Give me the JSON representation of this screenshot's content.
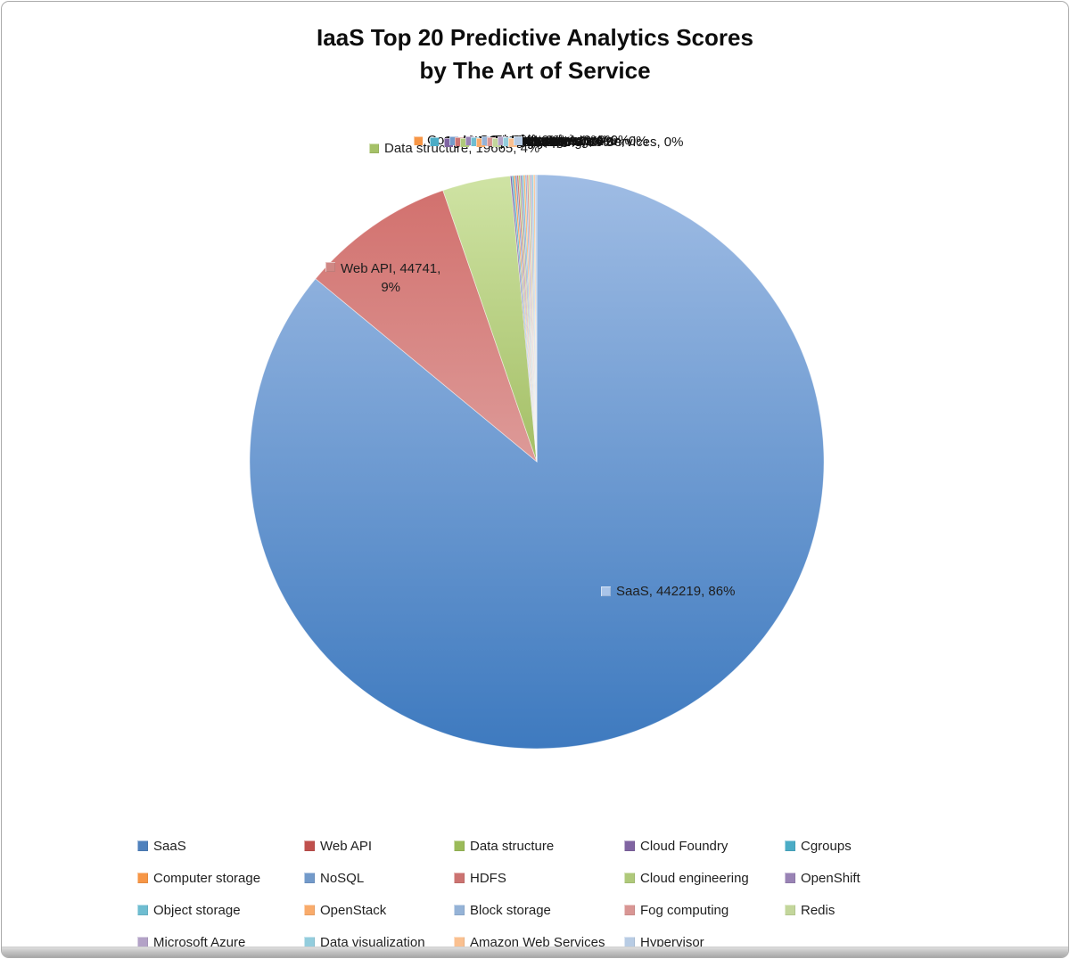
{
  "title": {
    "line1": "IaaS Top 20 Predictive Analytics Scores",
    "line2": "by The Art of Service"
  },
  "chart_data": {
    "type": "pie",
    "title": "IaaS Top 20 Predictive Analytics Scores by The Art of Service",
    "legend_position": "bottom",
    "label_style": "name, value, percent callouts; tiny-slice labels overlap illegibly above pie",
    "slices": [
      {
        "name": "SaaS",
        "value": 442219,
        "pct_label": "86%",
        "data_label": "SaaS, 442219, 86%",
        "color": "#4F81BD",
        "gradient": [
          "#9FBCE4",
          "#3E7ABF"
        ],
        "key_color": "#A9C4E9"
      },
      {
        "name": "Web API",
        "value": 44741,
        "pct_label": "9%",
        "data_label_line1": "Web API, 44741,",
        "data_label_line2": "9%",
        "color": "#C0504D",
        "gradient": [
          "#D2716E",
          "#DD9A98"
        ],
        "key_color": "#D08784"
      },
      {
        "name": "Data structure",
        "value": 19665,
        "pct_label": "4%",
        "data_label": "Data structure, 19665, 4%",
        "color": "#9BBB59",
        "gradient": [
          "#CFE3A4",
          "#A4BF66"
        ],
        "key_color": "#A5C167"
      },
      {
        "name": "Cloud Foundry",
        "value": null,
        "pct_label": "0%",
        "color": "#8064A2"
      },
      {
        "name": "Cgroups",
        "value": null,
        "pct_label": "0%",
        "color": "#4BACC6"
      },
      {
        "name": "Computer storage",
        "value": null,
        "pct_label": "0%",
        "color": "#F79646"
      },
      {
        "name": "NoSQL",
        "value": null,
        "pct_label": "0%",
        "color": "#729ACA"
      },
      {
        "name": "HDFS",
        "value": null,
        "pct_label": "0%",
        "color": "#CC7371"
      },
      {
        "name": "Cloud engineering",
        "value": null,
        "pct_label": "0%",
        "color": "#AFC97A"
      },
      {
        "name": "OpenShift",
        "value": null,
        "pct_label": "0%",
        "color": "#9983B5"
      },
      {
        "name": "Object storage",
        "value": null,
        "pct_label": "0%",
        "color": "#6FBDD1"
      },
      {
        "name": "OpenStack",
        "value": null,
        "pct_label": "0%",
        "color": "#F9AB6B"
      },
      {
        "name": "Block storage",
        "value": null,
        "pct_label": "0%",
        "color": "#95B3D7"
      },
      {
        "name": "Fog computing",
        "value": null,
        "pct_label": "0%",
        "color": "#D99694"
      },
      {
        "name": "Redis",
        "value": null,
        "pct_label": "0%",
        "color": "#C3D69B"
      },
      {
        "name": "Microsoft Azure",
        "value": null,
        "pct_label": "0%",
        "color": "#B3A2C7"
      },
      {
        "name": "Data visualization",
        "value": null,
        "pct_label": "0%",
        "color": "#93CDDD"
      },
      {
        "name": "Amazon Web Services",
        "value": null,
        "pct_label": "0%",
        "color": "#FAC090"
      },
      {
        "name": "Hypervisor",
        "value": null,
        "pct_label": "0%",
        "color": "#B8CCE4"
      }
    ],
    "tiny_slice_render_value": 474,
    "cluster_label_suffix": ", 0%"
  }
}
